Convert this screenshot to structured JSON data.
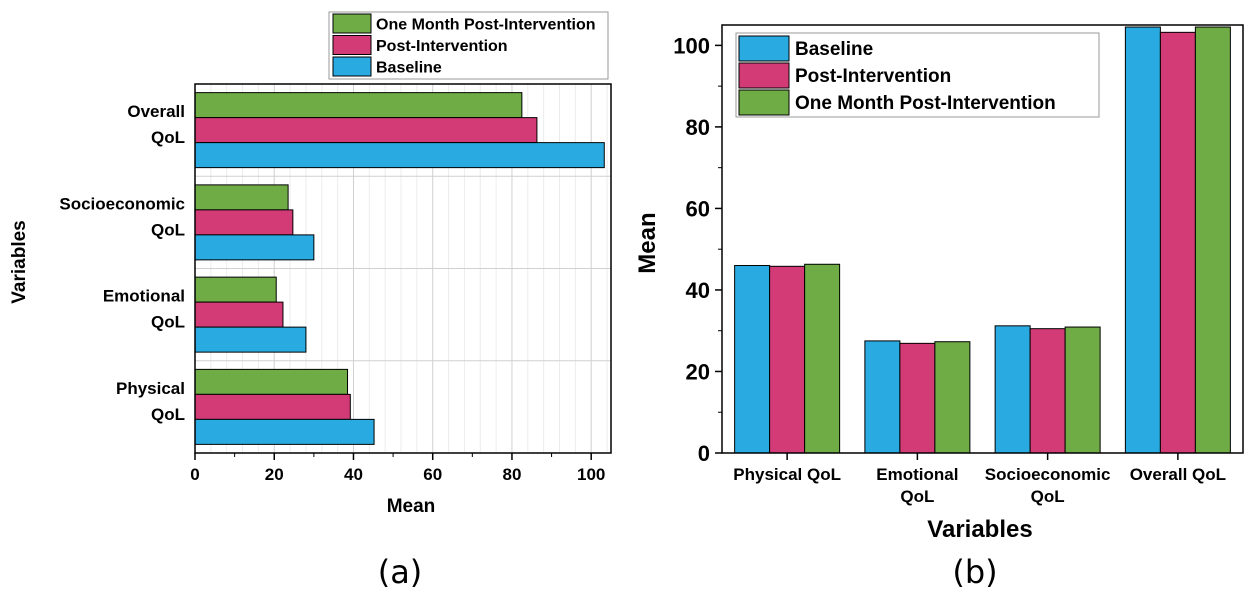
{
  "colors": {
    "baseline": "#29abe2",
    "post": "#d33b77",
    "onemonth": "#6fac46",
    "grid": "#d0d0d0",
    "minor_grid": "#ececec"
  },
  "chart_data": [
    {
      "type": "bar",
      "orientation": "horizontal",
      "panel_label": "(a)",
      "title": "",
      "xlabel": "Mean",
      "ylabel": "Variables",
      "xlim": [
        0,
        105
      ],
      "xticks": [
        "0",
        "20",
        "40",
        "60",
        "80",
        "100"
      ],
      "categories": [
        "Physical QoL",
        "Emotional QoL",
        "Socioeconomic QoL",
        "Overall QoL"
      ],
      "category_lines": [
        [
          "Physical",
          "QoL"
        ],
        [
          "Emotional",
          "QoL"
        ],
        [
          "Socioeconomic",
          "QoL"
        ],
        [
          "Overall",
          "QoL"
        ]
      ],
      "grid": true,
      "legend_position": "top",
      "series": [
        {
          "name": "One Month Post-Intervention",
          "color_key": "onemonth",
          "values": [
            38.5,
            20.5,
            23.5,
            82.5
          ]
        },
        {
          "name": "Post-Intervention",
          "color_key": "post",
          "values": [
            39.2,
            22.2,
            24.7,
            86.3
          ]
        },
        {
          "name": "Baseline",
          "color_key": "baseline",
          "values": [
            45.2,
            28.0,
            30.0,
            103.3
          ]
        }
      ]
    },
    {
      "type": "bar",
      "orientation": "vertical",
      "panel_label": "(b)",
      "title": "",
      "xlabel": "Variables",
      "ylabel": "Mean",
      "ylim": [
        0,
        105
      ],
      "yticks": [
        "0",
        "20",
        "40",
        "60",
        "80",
        "100"
      ],
      "categories": [
        "Physical QoL",
        "Emotional QoL",
        "Socioeconomic QoL",
        "Overall QoL"
      ],
      "category_lines": [
        [
          "Physical QoL"
        ],
        [
          "Emotional",
          "QoL"
        ],
        [
          "Socioeconomic",
          "QoL"
        ],
        [
          "Overall QoL"
        ]
      ],
      "grid": false,
      "legend_position": "top-left",
      "series": [
        {
          "name": "Baseline",
          "color_key": "baseline",
          "values": [
            46.0,
            27.5,
            31.2,
            104.5
          ]
        },
        {
          "name": "Post-Intervention",
          "color_key": "post",
          "values": [
            45.8,
            26.9,
            30.5,
            103.2
          ]
        },
        {
          "name": "One Month Post-Intervention",
          "color_key": "onemonth",
          "values": [
            46.3,
            27.3,
            30.9,
            104.5
          ]
        }
      ]
    }
  ]
}
